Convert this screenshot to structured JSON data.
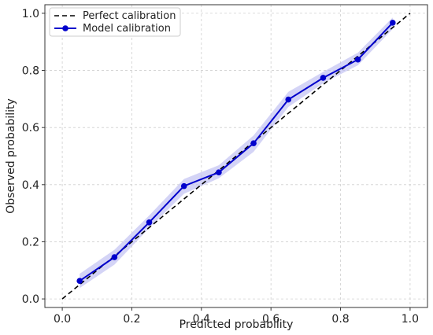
{
  "chart_data": {
    "type": "line",
    "xlabel": "Predicted probability",
    "ylabel": "Observed probability",
    "xlim": [
      -0.05,
      1.05
    ],
    "ylim": [
      -0.03,
      1.03
    ],
    "xticks": [
      "0.0",
      "0.2",
      "0.4",
      "0.6",
      "0.8",
      "1.0"
    ],
    "yticks": [
      "0.0",
      "0.2",
      "0.4",
      "0.6",
      "0.8",
      "1.0"
    ],
    "grid": true,
    "legend_position": "top-left",
    "series": [
      {
        "name": "Perfect calibration",
        "style": "dashed",
        "color": "#000000",
        "x": [
          0.0,
          1.0
        ],
        "y": [
          0.0,
          1.0
        ]
      },
      {
        "name": "Model calibration",
        "style": "solid-markers",
        "color": "#0000cc",
        "band_color": "#b8b8f0",
        "x": [
          0.05,
          0.15,
          0.25,
          0.35,
          0.45,
          0.55,
          0.65,
          0.75,
          0.85,
          0.95
        ],
        "y": [
          0.063,
          0.146,
          0.268,
          0.395,
          0.443,
          0.545,
          0.698,
          0.774,
          0.838,
          0.967
        ],
        "lower": [
          0.038,
          0.12,
          0.248,
          0.368,
          0.422,
          0.515,
          0.672,
          0.755,
          0.818,
          0.945
        ],
        "upper": [
          0.088,
          0.172,
          0.292,
          0.42,
          0.468,
          0.572,
          0.725,
          0.795,
          0.862,
          0.985
        ]
      }
    ]
  }
}
